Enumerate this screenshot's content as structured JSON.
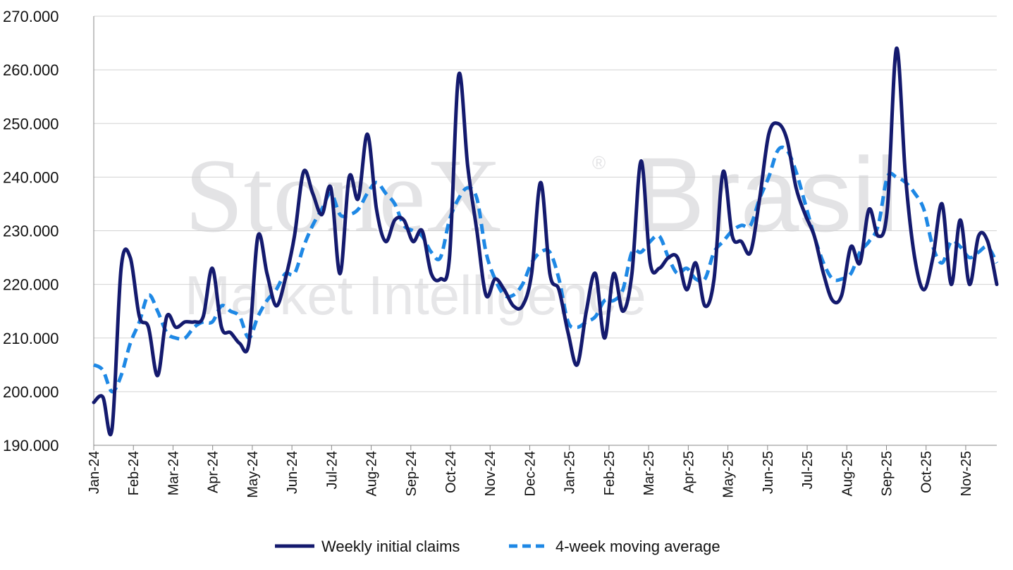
{
  "watermark": {
    "brand": "StoneX",
    "registered": "®",
    "country": "Brasil",
    "subtitle": "Market Intelligence"
  },
  "colors": {
    "weekly": "#141a6e",
    "moving_average": "#1e88e5",
    "grid": "#d2d2d2",
    "axis": "#888888"
  },
  "chart_data": {
    "type": "line",
    "title": "",
    "xlabel": "",
    "ylabel": "",
    "ylim": [
      190000,
      270000
    ],
    "y_ticks": [
      "190.000",
      "200.000",
      "210.000",
      "220.000",
      "230.000",
      "240.000",
      "250.000",
      "260.000",
      "270.000"
    ],
    "x_ticks": [
      "Jan-24",
      "Feb-24",
      "Mar-24",
      "Apr-24",
      "May-24",
      "Jun-24",
      "Jul-24",
      "Aug-24",
      "Sep-24",
      "Oct-24",
      "Nov-24",
      "Dec-24",
      "Jan-25",
      "Feb-25",
      "Mar-25",
      "Apr-25",
      "May-25",
      "Jun-25",
      "Jul-25",
      "Aug-25",
      "Sep-25",
      "Oct-25",
      "Nov-25"
    ],
    "x_unit": "week index from first observation (Jan-24 = 0)",
    "grid": "horizontal",
    "legend_position": "bottom-center",
    "series": [
      {
        "name": "Weekly initial claims",
        "style": "solid",
        "values": [
          198000,
          199000,
          193000,
          223000,
          225000,
          214000,
          212000,
          203000,
          214000,
          212000,
          213000,
          213000,
          214000,
          223000,
          212000,
          211000,
          209000,
          209000,
          229000,
          222000,
          216000,
          221000,
          229000,
          241000,
          237000,
          233000,
          238000,
          222000,
          240000,
          236000,
          248000,
          234000,
          228000,
          232000,
          232000,
          228000,
          230000,
          222000,
          221000,
          225000,
          259000,
          242000,
          230000,
          218000,
          221000,
          219000,
          216000,
          216000,
          222000,
          239000,
          222000,
          219000,
          211000,
          205000,
          215000,
          222000,
          210000,
          222000,
          215000,
          222000,
          243000,
          224000,
          223000,
          225000,
          225000,
          219000,
          224000,
          216000,
          221000,
          241000,
          229000,
          228000,
          226000,
          236000,
          248000,
          250000,
          247000,
          238000,
          233000,
          229000,
          222000,
          217000,
          218000,
          227000,
          224000,
          234000,
          229000,
          234000,
          264000,
          240000,
          225000,
          219000,
          225000,
          235000,
          220000,
          232000,
          220000,
          229000,
          228000,
          220000
        ]
      },
      {
        "name": "4-week moving average",
        "style": "dashed",
        "values": [
          205000,
          204000,
          200000,
          203000,
          209000,
          213000,
          218000,
          215000,
          211000,
          210000,
          210000,
          212000,
          213000,
          213000,
          216000,
          215000,
          214000,
          210000,
          214000,
          217000,
          219000,
          222000,
          222000,
          227000,
          231000,
          234000,
          237000,
          233000,
          233000,
          234000,
          237000,
          239000,
          237000,
          235000,
          231000,
          230000,
          229000,
          226000,
          225000,
          232000,
          236000,
          238000,
          236000,
          226000,
          221000,
          218000,
          218000,
          220000,
          224000,
          226000,
          226000,
          221000,
          213000,
          212000,
          213000,
          214000,
          217000,
          217000,
          219000,
          226000,
          226000,
          228000,
          229000,
          225000,
          222000,
          223000,
          221000,
          221000,
          226000,
          228000,
          230000,
          231000,
          231000,
          236000,
          240000,
          245000,
          245000,
          241000,
          235000,
          229000,
          224000,
          221000,
          221000,
          222000,
          226000,
          228000,
          231000,
          240000,
          240000,
          239000,
          237000,
          234000,
          227000,
          224000,
          228000,
          227000,
          225000,
          226000,
          227000,
          224000
        ]
      }
    ]
  }
}
